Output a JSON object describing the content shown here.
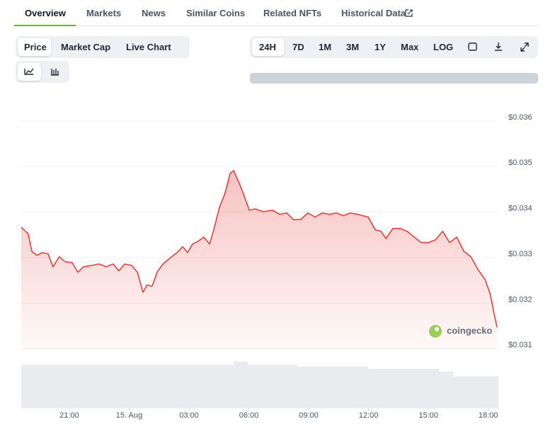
{
  "tabs": [
    "Overview",
    "Markets",
    "News",
    "Similar Coins",
    "Related NFTs",
    "Historical Data"
  ],
  "chart_tabs": [
    "Price",
    "Market Cap",
    "Live Chart"
  ],
  "ranges": [
    "24H",
    "7D",
    "1M",
    "3M",
    "1Y",
    "Max",
    "LOG"
  ],
  "chart_data": {
    "type": "area",
    "color": "#e5403b",
    "grid": true,
    "watermark": "coingecko",
    "x": [
      18.59,
      18.94,
      19.12,
      19.37,
      19.65,
      19.94,
      20.18,
      20.5,
      20.79,
      21.14,
      21.43,
      21.71,
      22.14,
      22.49,
      22.85,
      23.2,
      23.48,
      23.77,
      24.12,
      24.41,
      24.69,
      24.9,
      25.15,
      25.4,
      25.69,
      26.04,
      26.4,
      26.68,
      26.93,
      27.18,
      27.46,
      27.74,
      28.03,
      28.24,
      28.53,
      28.81,
      29.06,
      29.24,
      29.52,
      29.77,
      30.02,
      30.3,
      30.73,
      31.19,
      31.54,
      31.9,
      32.25,
      32.61,
      32.96,
      33.32,
      33.67,
      34.03,
      34.38,
      34.74,
      35.09,
      35.45,
      35.98,
      36.34,
      36.62,
      36.87,
      37.22,
      37.58,
      37.93,
      38.29,
      38.64,
      39.0,
      39.35,
      39.71,
      40.06,
      40.42,
      40.77,
      41.13,
      41.48,
      41.84,
      42.09,
      42.3,
      42.44
    ],
    "values": [
      0.03367,
      0.03352,
      0.03314,
      0.03305,
      0.03311,
      0.03308,
      0.0328,
      0.03302,
      0.03291,
      0.03289,
      0.03268,
      0.0328,
      0.03283,
      0.03286,
      0.0328,
      0.03286,
      0.03271,
      0.03286,
      0.03283,
      0.03268,
      0.03224,
      0.0324,
      0.03237,
      0.03268,
      0.03286,
      0.03299,
      0.03311,
      0.03324,
      0.03311,
      0.0333,
      0.03336,
      0.03345,
      0.0333,
      0.03361,
      0.03411,
      0.03442,
      0.03485,
      0.03491,
      0.03463,
      0.03435,
      0.03404,
      0.03407,
      0.03401,
      0.03404,
      0.03395,
      0.03398,
      0.03383,
      0.03384,
      0.03398,
      0.03389,
      0.03398,
      0.03395,
      0.03398,
      0.03392,
      0.03398,
      0.03395,
      0.03389,
      0.03361,
      0.03358,
      0.03342,
      0.03364,
      0.03364,
      0.03358,
      0.03345,
      0.03333,
      0.03333,
      0.03339,
      0.03358,
      0.03333,
      0.03345,
      0.03314,
      0.03302,
      0.03274,
      0.03252,
      0.03221,
      0.03175,
      0.03147
    ],
    "xlim": [
      18.59,
      42.51
    ],
    "xticks": [
      {
        "value": 21,
        "label": "21:00"
      },
      {
        "value": 24,
        "label": "15. Aug"
      },
      {
        "value": 27,
        "label": "03:00"
      },
      {
        "value": 30,
        "label": "06:00"
      },
      {
        "value": 33,
        "label": "09:00"
      },
      {
        "value": 36,
        "label": "12:00"
      },
      {
        "value": 39,
        "label": "15:00"
      },
      {
        "value": 42,
        "label": "18:00"
      }
    ],
    "ylim": [
      0.03098,
      0.03648
    ],
    "yticks": [
      {
        "value": 0.031,
        "label": "$0.031"
      },
      {
        "value": 0.032,
        "label": "$0.032"
      },
      {
        "value": 0.033,
        "label": "$0.033"
      },
      {
        "value": 0.034,
        "label": "$0.034"
      },
      {
        "value": 0.035,
        "label": "$0.035"
      },
      {
        "value": 0.036,
        "label": "$0.036"
      }
    ]
  }
}
